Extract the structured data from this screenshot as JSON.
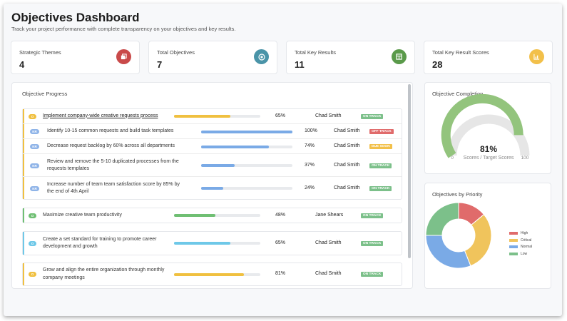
{
  "header": {
    "title": "Objectives Dashboard",
    "subtitle": "Track your project performance with complete transparency on your objectives and key results."
  },
  "stats": [
    {
      "label": "Strategic Themes",
      "value": "4",
      "icon": "stack-icon",
      "color": "#c94a4a"
    },
    {
      "label": "Total Objectives",
      "value": "7",
      "icon": "target-icon",
      "color": "#4a94a8"
    },
    {
      "label": "Total Key Results",
      "value": "11",
      "icon": "grid-icon",
      "color": "#5a9a4a"
    },
    {
      "label": "Total Key Result Scores",
      "value": "28",
      "icon": "chart-icon",
      "color": "#f2c04a"
    }
  ],
  "progress": {
    "title": "Objective Progress",
    "groups": [
      {
        "color": "#f0c040",
        "rows": [
          {
            "badge": "O",
            "text": "Implement company-wide creative requests process",
            "pct_label": "65%",
            "progress": 0.65,
            "owner": "Chad Smith",
            "status": "ON TRACK"
          },
          {
            "badge": "KR",
            "text": "Identify 10-15 common requests and build task templates",
            "pct_label": "100%",
            "progress": 1.0,
            "owner": "Chad Smith",
            "status": "OFF TRACK"
          },
          {
            "badge": "KR",
            "text": "Decrease request backlog by 60% across all departments",
            "pct_label": "74%",
            "progress": 0.74,
            "owner": "Chad Smith",
            "status": "DUE SOON"
          },
          {
            "badge": "KR",
            "text": "Review and remove the 5-10 duplicated processes from the requests templates",
            "pct_label": "37%",
            "progress": 0.37,
            "owner": "Chad Smith",
            "status": "ON TRACK"
          },
          {
            "badge": "KR",
            "text": "Increase number of team team satisfaction score by 85% by the end of 4th April",
            "pct_label": "24%",
            "progress": 0.24,
            "owner": "Chad Smith",
            "status": "ON TRACK"
          }
        ]
      },
      {
        "color": "#6fbf73",
        "rows": [
          {
            "badge": "O",
            "text": "Maximize creative team productivity",
            "pct_label": "48%",
            "progress": 0.48,
            "owner": "Jane Shears",
            "status": "ON TRACK"
          }
        ]
      },
      {
        "color": "#6ec8e8",
        "rows": [
          {
            "badge": "O",
            "text": "Create a set standard for training to promote career development and growth",
            "pct_label": "65%",
            "progress": 0.65,
            "owner": "Chad Smith",
            "status": "ON TRACK"
          }
        ]
      },
      {
        "color": "#f0c040",
        "rows": [
          {
            "badge": "O",
            "text": "Grow and align the entire organization through monthly company meetings",
            "pct_label": "81%",
            "progress": 0.81,
            "owner": "Chad Smith",
            "status": "ON TRACK"
          }
        ]
      }
    ]
  },
  "status_colors": {
    "ON TRACK": "#7cc08a",
    "OFF TRACK": "#e06b6b",
    "DUE SOON": "#f2c04a"
  },
  "colors": {
    "badge_kr": "#8fb4e8",
    "bar_kr": "#7aaae6"
  },
  "completion": {
    "title": "Objective Completion",
    "value_label": "81%",
    "value": 81,
    "caption": "Scores / Target Scores",
    "min_label": "0",
    "max_label": "100",
    "fill_color": "#93c47d",
    "track_color": "#e6e6e6"
  },
  "priority": {
    "title": "Objectives by Priority",
    "chart_data": {
      "type": "pie",
      "categories": [
        "High",
        "Critical",
        "Normal",
        "Low"
      ],
      "values": [
        14,
        30,
        31,
        25
      ],
      "colors": [
        "#e06b6b",
        "#f0c45c",
        "#7aaae6",
        "#7cc08a"
      ],
      "legend_position": "right"
    }
  }
}
